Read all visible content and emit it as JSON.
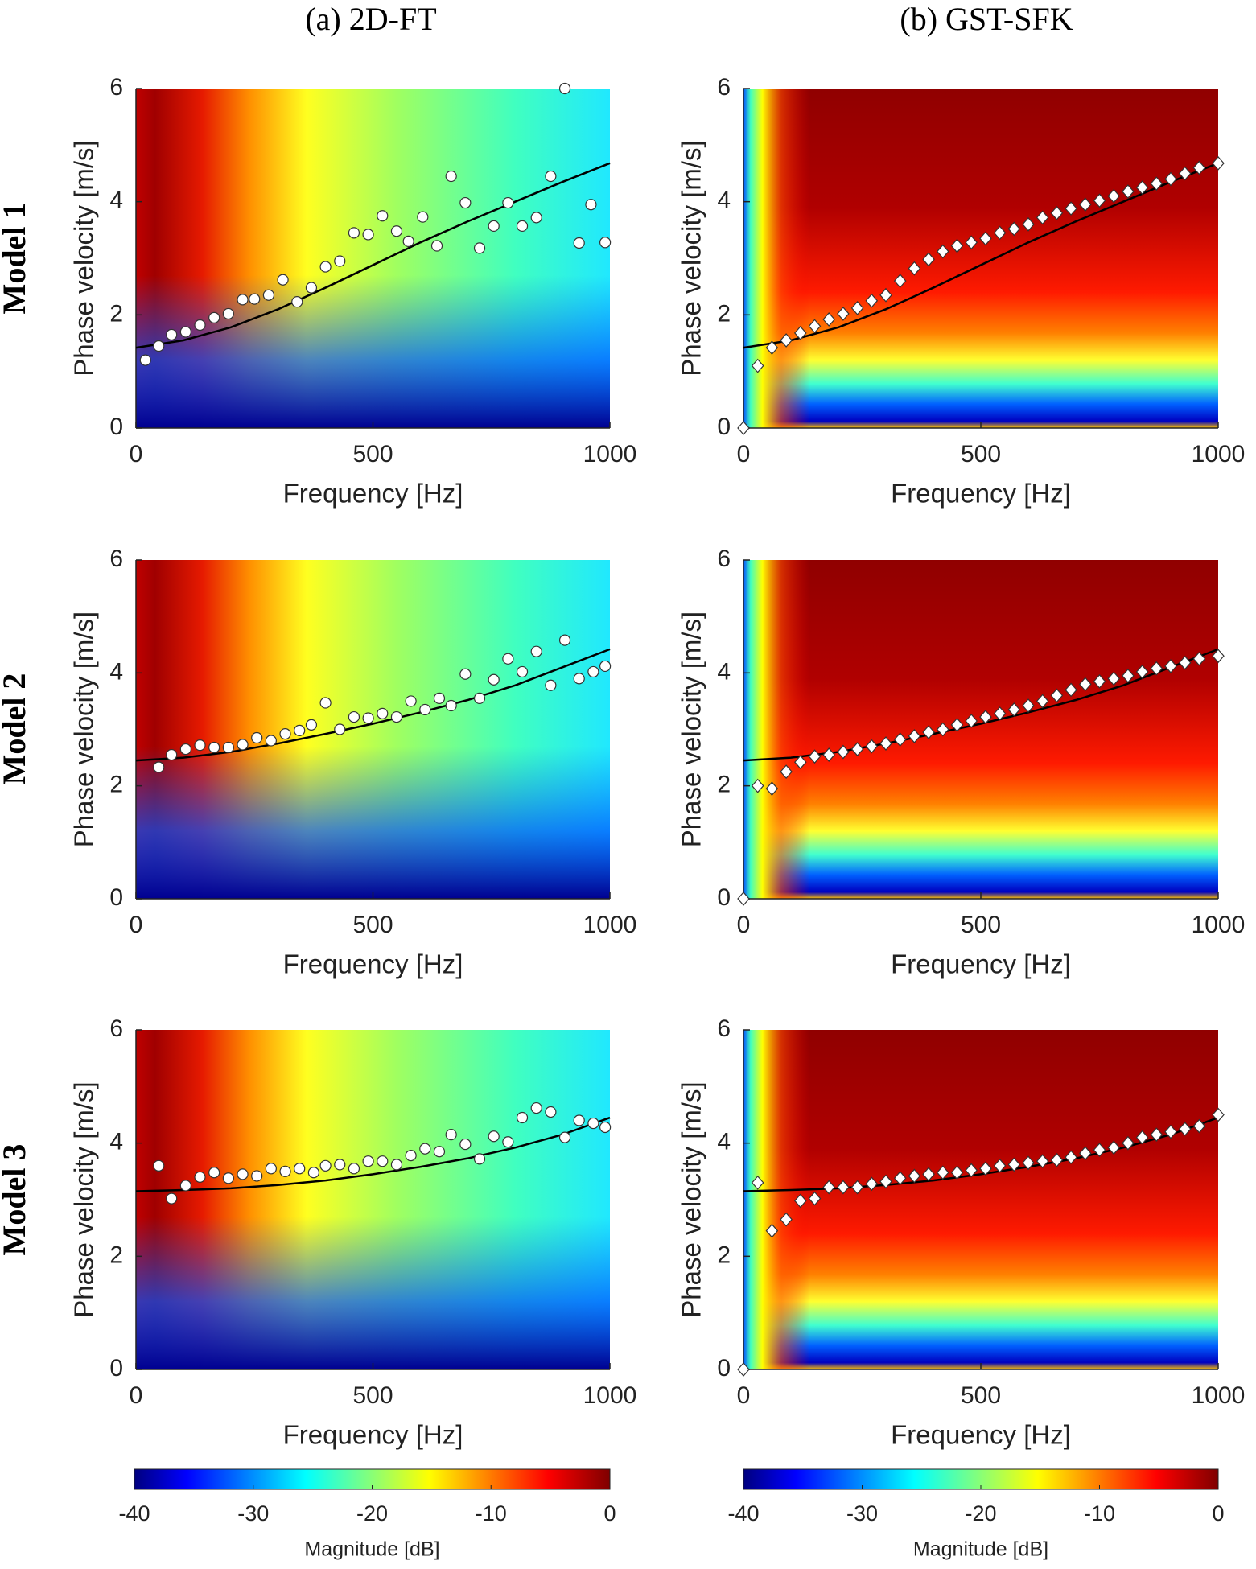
{
  "column_titles": [
    "(a) 2D-FT",
    "(b) GST-SFK"
  ],
  "row_labels": [
    "Model 1",
    "Model 2",
    "Model 3"
  ],
  "chart_data": [
    {
      "type": "scatter",
      "heatmap": "2dft",
      "marker": "circle",
      "xlabel": "Frequency [Hz]",
      "ylabel": "Phase velocity [m/s]",
      "xlim": [
        0,
        1000
      ],
      "ylim": [
        0,
        6
      ],
      "xticks": [
        0,
        500,
        1000
      ],
      "yticks": [
        0,
        2,
        4,
        6
      ],
      "series": [
        {
          "kind": "points",
          "color": "#ffffff",
          "x": [
            20,
            48,
            75,
            105,
            135,
            165,
            195,
            225,
            250,
            280,
            310,
            340,
            370,
            400,
            430,
            460,
            490,
            520,
            550,
            575,
            605,
            635,
            665,
            695,
            725,
            755,
            785,
            815,
            845,
            875,
            905,
            935,
            960,
            990
          ],
          "values": [
            1.2,
            1.45,
            1.65,
            1.7,
            1.82,
            1.95,
            2.02,
            2.27,
            2.28,
            2.35,
            2.62,
            2.23,
            2.48,
            2.85,
            2.95,
            3.45,
            3.42,
            3.75,
            3.48,
            3.3,
            3.73,
            3.22,
            4.45,
            3.98,
            3.18,
            3.57,
            3.98,
            3.57,
            3.72,
            4.45,
            6.0,
            3.27,
            3.95,
            3.28
          ]
        },
        {
          "kind": "line",
          "color": "#000000",
          "x": [
            0,
            100,
            200,
            300,
            400,
            500,
            600,
            700,
            800,
            900,
            1000
          ],
          "values": [
            1.42,
            1.55,
            1.78,
            2.1,
            2.48,
            2.88,
            3.28,
            3.65,
            4.0,
            4.35,
            4.68
          ]
        }
      ]
    },
    {
      "type": "scatter",
      "heatmap": "gst",
      "marker": "diamond",
      "xlabel": "Frequency [Hz]",
      "ylabel": "Phase velocity [m/s]",
      "xlim": [
        0,
        1000
      ],
      "ylim": [
        0,
        6
      ],
      "xticks": [
        0,
        500,
        1000
      ],
      "yticks": [
        0,
        2,
        4,
        6
      ],
      "series": [
        {
          "kind": "points",
          "color": "#ffffff",
          "x": [
            0,
            30,
            60,
            90,
            120,
            150,
            180,
            210,
            240,
            270,
            300,
            330,
            360,
            390,
            420,
            450,
            480,
            510,
            540,
            570,
            600,
            630,
            660,
            690,
            720,
            750,
            780,
            810,
            840,
            870,
            900,
            930,
            960,
            1000
          ],
          "values": [
            0,
            1.1,
            1.42,
            1.55,
            1.68,
            1.8,
            1.92,
            2.02,
            2.12,
            2.25,
            2.35,
            2.6,
            2.82,
            2.98,
            3.12,
            3.22,
            3.28,
            3.35,
            3.45,
            3.52,
            3.6,
            3.72,
            3.8,
            3.88,
            3.95,
            4.02,
            4.1,
            4.18,
            4.25,
            4.32,
            4.4,
            4.5,
            4.6,
            4.68
          ]
        },
        {
          "kind": "line",
          "color": "#000000",
          "x": [
            0,
            100,
            200,
            300,
            400,
            500,
            600,
            700,
            800,
            900,
            1000
          ],
          "values": [
            1.42,
            1.55,
            1.78,
            2.1,
            2.48,
            2.88,
            3.28,
            3.65,
            4.0,
            4.35,
            4.68
          ]
        }
      ]
    },
    {
      "type": "scatter",
      "heatmap": "2dft",
      "marker": "circle",
      "xlabel": "Frequency [Hz]",
      "ylabel": "Phase velocity [m/s]",
      "xlim": [
        0,
        1000
      ],
      "ylim": [
        0,
        6
      ],
      "xticks": [
        0,
        500,
        1000
      ],
      "yticks": [
        0,
        2,
        4,
        6
      ],
      "series": [
        {
          "kind": "points",
          "color": "#ffffff",
          "x": [
            48,
            75,
            105,
            135,
            165,
            195,
            225,
            255,
            285,
            315,
            345,
            370,
            400,
            430,
            460,
            490,
            520,
            550,
            580,
            610,
            640,
            665,
            695,
            725,
            755,
            785,
            815,
            845,
            875,
            905,
            935,
            965,
            990
          ],
          "values": [
            2.33,
            2.55,
            2.65,
            2.72,
            2.68,
            2.68,
            2.73,
            2.85,
            2.8,
            2.92,
            2.98,
            3.08,
            3.47,
            3.0,
            3.22,
            3.2,
            3.28,
            3.22,
            3.5,
            3.35,
            3.55,
            3.42,
            3.98,
            3.55,
            3.88,
            4.25,
            4.02,
            4.38,
            3.78,
            4.58,
            3.9,
            4.02,
            4.12
          ]
        },
        {
          "kind": "line",
          "color": "#000000",
          "x": [
            0,
            100,
            200,
            300,
            400,
            500,
            600,
            700,
            800,
            900,
            1000
          ],
          "values": [
            2.45,
            2.5,
            2.6,
            2.75,
            2.92,
            3.1,
            3.3,
            3.52,
            3.78,
            4.1,
            4.42
          ]
        }
      ]
    },
    {
      "type": "scatter",
      "heatmap": "gst",
      "marker": "diamond",
      "xlabel": "Frequency [Hz]",
      "ylabel": "Phase velocity [m/s]",
      "xlim": [
        0,
        1000
      ],
      "ylim": [
        0,
        6
      ],
      "xticks": [
        0,
        500,
        1000
      ],
      "yticks": [
        0,
        2,
        4,
        6
      ],
      "series": [
        {
          "kind": "points",
          "color": "#ffffff",
          "x": [
            0,
            30,
            60,
            90,
            120,
            150,
            180,
            210,
            240,
            270,
            300,
            330,
            360,
            390,
            420,
            450,
            480,
            510,
            540,
            570,
            600,
            630,
            660,
            690,
            720,
            750,
            780,
            810,
            840,
            870,
            900,
            930,
            960,
            1000
          ],
          "values": [
            0,
            2.0,
            1.95,
            2.25,
            2.42,
            2.52,
            2.55,
            2.6,
            2.65,
            2.7,
            2.75,
            2.82,
            2.88,
            2.95,
            3.0,
            3.08,
            3.15,
            3.22,
            3.28,
            3.35,
            3.42,
            3.5,
            3.6,
            3.7,
            3.8,
            3.85,
            3.9,
            3.95,
            4.02,
            4.08,
            4.12,
            4.18,
            4.25,
            4.3
          ]
        },
        {
          "kind": "line",
          "color": "#000000",
          "x": [
            0,
            100,
            200,
            300,
            400,
            500,
            600,
            700,
            800,
            900,
            1000
          ],
          "values": [
            2.45,
            2.5,
            2.6,
            2.75,
            2.92,
            3.1,
            3.3,
            3.52,
            3.78,
            4.1,
            4.42
          ]
        }
      ]
    },
    {
      "type": "scatter",
      "heatmap": "2dft",
      "marker": "circle",
      "xlabel": "Frequency [Hz]",
      "ylabel": "Phase velocity [m/s]",
      "xlim": [
        0,
        1000
      ],
      "ylim": [
        0,
        6
      ],
      "xticks": [
        0,
        500,
        1000
      ],
      "yticks": [
        0,
        2,
        4,
        6
      ],
      "series": [
        {
          "kind": "points",
          "color": "#ffffff",
          "x": [
            48,
            75,
            105,
            135,
            165,
            195,
            225,
            255,
            285,
            315,
            345,
            375,
            400,
            430,
            460,
            490,
            520,
            550,
            580,
            610,
            640,
            665,
            695,
            725,
            755,
            785,
            815,
            845,
            875,
            905,
            935,
            965,
            990
          ],
          "values": [
            3.6,
            3.02,
            3.25,
            3.4,
            3.48,
            3.38,
            3.45,
            3.42,
            3.55,
            3.5,
            3.55,
            3.48,
            3.6,
            3.62,
            3.55,
            3.68,
            3.68,
            3.62,
            3.78,
            3.9,
            3.85,
            4.15,
            3.98,
            3.72,
            4.12,
            4.02,
            4.45,
            4.62,
            4.55,
            4.1,
            4.4,
            4.35,
            4.28
          ]
        },
        {
          "kind": "line",
          "color": "#000000",
          "x": [
            0,
            100,
            200,
            300,
            400,
            500,
            600,
            700,
            800,
            900,
            1000
          ],
          "values": [
            3.15,
            3.17,
            3.2,
            3.26,
            3.34,
            3.45,
            3.58,
            3.73,
            3.92,
            4.15,
            4.45
          ]
        }
      ]
    },
    {
      "type": "scatter",
      "heatmap": "gst",
      "marker": "diamond",
      "xlabel": "Frequency [Hz]",
      "ylabel": "Phase velocity [m/s]",
      "xlim": [
        0,
        1000
      ],
      "ylim": [
        0,
        6
      ],
      "xticks": [
        0,
        500,
        1000
      ],
      "yticks": [
        0,
        2,
        4,
        6
      ],
      "series": [
        {
          "kind": "points",
          "color": "#ffffff",
          "x": [
            0,
            30,
            60,
            90,
            120,
            150,
            180,
            210,
            240,
            270,
            300,
            330,
            360,
            390,
            420,
            450,
            480,
            510,
            540,
            570,
            600,
            630,
            660,
            690,
            720,
            750,
            780,
            810,
            840,
            870,
            900,
            930,
            960,
            1000
          ],
          "values": [
            0,
            3.3,
            2.45,
            2.65,
            2.98,
            3.02,
            3.22,
            3.22,
            3.22,
            3.28,
            3.32,
            3.38,
            3.42,
            3.45,
            3.48,
            3.48,
            3.52,
            3.55,
            3.6,
            3.62,
            3.65,
            3.68,
            3.7,
            3.75,
            3.82,
            3.88,
            3.92,
            4.0,
            4.1,
            4.15,
            4.2,
            4.25,
            4.3,
            4.5
          ]
        },
        {
          "kind": "line",
          "color": "#000000",
          "x": [
            0,
            100,
            200,
            300,
            400,
            500,
            600,
            700,
            800,
            900,
            1000
          ],
          "values": [
            3.15,
            3.17,
            3.2,
            3.26,
            3.34,
            3.45,
            3.58,
            3.73,
            3.92,
            4.15,
            4.45
          ]
        }
      ]
    }
  ],
  "colorbars": [
    {
      "label": "Magnitude [dB]",
      "lim": [
        -40,
        0
      ],
      "ticks": [
        -40,
        -30,
        -20,
        -10,
        0
      ]
    },
    {
      "label": "Magnitude [dB]",
      "lim": [
        -40,
        0
      ],
      "ticks": [
        -40,
        -30,
        -20,
        -10,
        0
      ]
    }
  ]
}
